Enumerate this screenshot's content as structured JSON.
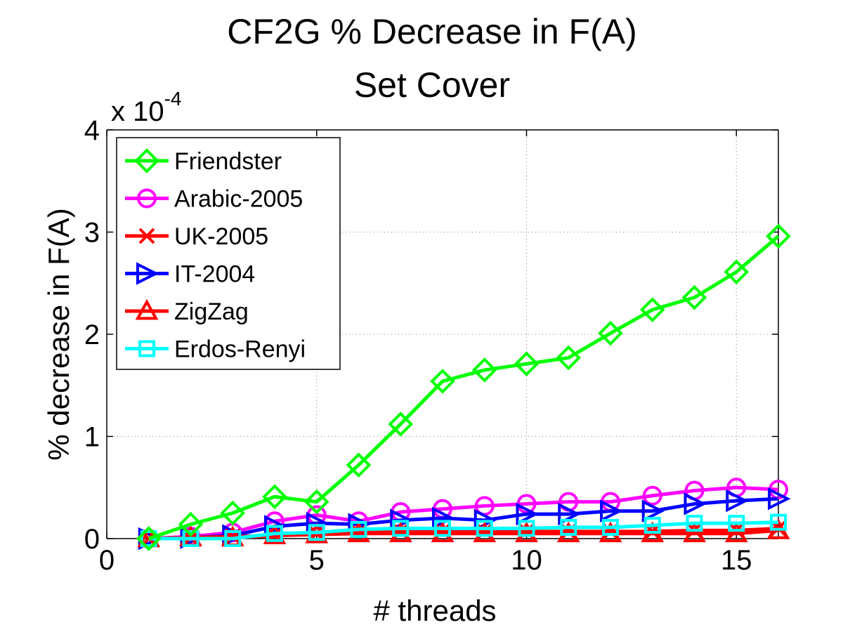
{
  "chart_data": {
    "type": "line",
    "title": "CF2G % Decrease in F(A)",
    "subtitle": "Set Cover",
    "xlabel": "# threads",
    "ylabel": "% decrease in F(A)",
    "xlim": [
      0,
      16
    ],
    "ylim": [
      0,
      4
    ],
    "y_multiplier": "x 10",
    "y_exponent": "-4",
    "xticks": [
      "0",
      "5",
      "10",
      "15"
    ],
    "yticks": [
      "0",
      "1",
      "2",
      "3",
      "4"
    ],
    "grid": true,
    "legend_position": "top-left",
    "x": [
      1,
      2,
      3,
      4,
      5,
      6,
      7,
      8,
      9,
      10,
      11,
      12,
      13,
      14,
      15,
      16
    ],
    "series": [
      {
        "name": "Friendster",
        "color": "#00ff00",
        "marker": "diamond",
        "values": [
          0.0,
          0.14,
          0.25,
          0.41,
          0.36,
          0.72,
          1.12,
          1.54,
          1.65,
          1.71,
          1.77,
          2.01,
          2.24,
          2.36,
          2.61,
          2.96
        ]
      },
      {
        "name": "Arabic-2005",
        "color": "#ff00ff",
        "marker": "circle",
        "values": [
          0.0,
          0.02,
          0.06,
          0.17,
          0.23,
          0.17,
          0.26,
          0.29,
          0.32,
          0.34,
          0.36,
          0.36,
          0.42,
          0.47,
          0.5,
          0.48
        ]
      },
      {
        "name": "UK-2005",
        "color": "#ff0000",
        "marker": "x",
        "values": [
          0.0,
          0.01,
          0.02,
          0.03,
          0.05,
          0.06,
          0.07,
          0.07,
          0.07,
          0.07,
          0.07,
          0.07,
          0.07,
          0.08,
          0.08,
          0.1
        ]
      },
      {
        "name": "IT-2004",
        "color": "#0000ff",
        "marker": "triangle-right",
        "values": [
          0.0,
          0.01,
          0.03,
          0.12,
          0.15,
          0.14,
          0.18,
          0.2,
          0.18,
          0.24,
          0.24,
          0.27,
          0.27,
          0.34,
          0.37,
          0.39
        ]
      },
      {
        "name": "ZigZag",
        "color": "#ff0000",
        "marker": "triangle-up",
        "values": [
          0.0,
          0.01,
          0.01,
          0.03,
          0.04,
          0.05,
          0.05,
          0.05,
          0.05,
          0.05,
          0.05,
          0.05,
          0.05,
          0.05,
          0.05,
          0.08
        ]
      },
      {
        "name": "Erdos-Renyi",
        "color": "#00ffff",
        "marker": "square",
        "values": [
          0.0,
          0.0,
          0.0,
          0.05,
          0.06,
          0.09,
          0.1,
          0.1,
          0.1,
          0.1,
          0.11,
          0.11,
          0.13,
          0.15,
          0.15,
          0.16
        ]
      }
    ]
  }
}
